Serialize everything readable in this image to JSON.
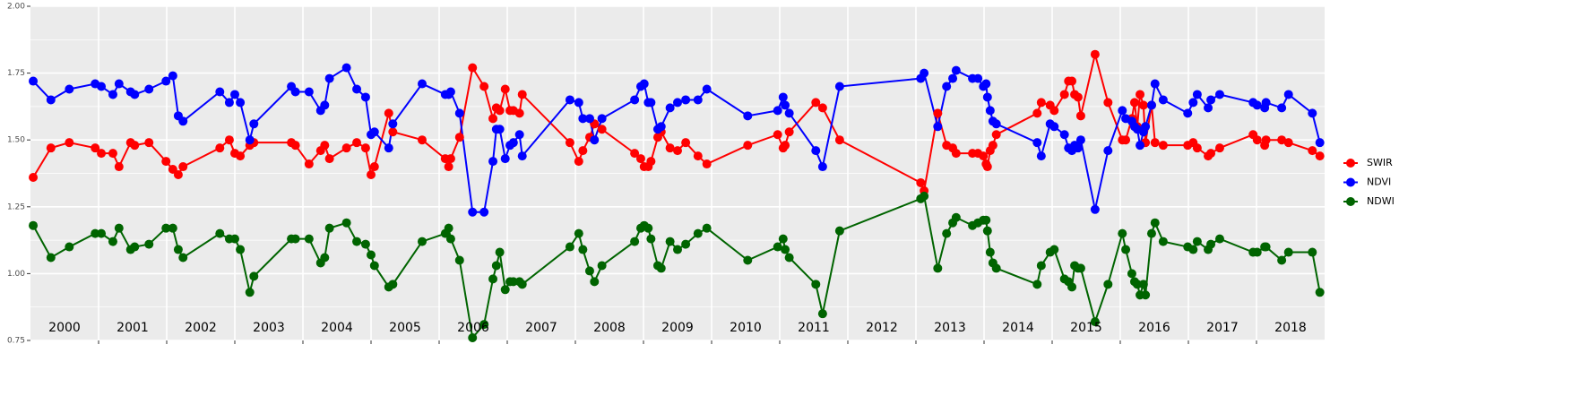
{
  "chart_data": {
    "type": "line",
    "x": [
      2000.04,
      2000.3,
      2000.57,
      2000.95,
      2001.04,
      2001.21,
      2001.3,
      2001.47,
      2001.53,
      2001.74,
      2001.99,
      2002.09,
      2002.17,
      2002.24,
      2002.78,
      2002.92,
      2003.0,
      2003.08,
      2003.22,
      2003.28,
      2003.83,
      2003.89,
      2004.09,
      2004.26,
      2004.32,
      2004.39,
      2004.64,
      2004.79,
      2004.92,
      2005.0,
      2005.05,
      2005.26,
      2005.32,
      2005.75,
      2006.09,
      2006.14,
      2006.17,
      2006.3,
      2006.49,
      2006.66,
      2006.79,
      2006.84,
      2006.89,
      2006.97,
      2007.04,
      2007.09,
      2007.18,
      2007.22,
      2007.92,
      2008.05,
      2008.11,
      2008.21,
      2008.28,
      2008.39,
      2008.87,
      2008.96,
      2009.01,
      2009.07,
      2009.11,
      2009.21,
      2009.26,
      2009.39,
      2009.5,
      2009.62,
      2009.8,
      2009.93,
      2010.53,
      2010.97,
      2011.05,
      2011.08,
      2011.14,
      2011.53,
      2011.63,
      2011.88,
      2013.07,
      2013.12,
      2013.32,
      2013.45,
      2013.54,
      2013.59,
      2013.83,
      2013.91,
      2013.99,
      2014.03,
      2014.05,
      2014.09,
      2014.13,
      2014.18,
      2014.78,
      2014.84,
      2014.97,
      2015.03,
      2015.18,
      2015.24,
      2015.29,
      2015.33,
      2015.38,
      2015.42,
      2015.63,
      2015.82,
      2016.03,
      2016.08,
      2016.17,
      2016.21,
      2016.25,
      2016.29,
      2016.34,
      2016.37,
      2016.46,
      2016.51,
      2016.63,
      2016.99,
      2017.07,
      2017.13,
      2017.29,
      2017.33,
      2017.46,
      2017.95,
      2018.01,
      2018.12,
      2018.14,
      2018.37,
      2018.47,
      2018.82,
      2018.93
    ],
    "series": [
      {
        "name": "SWIR",
        "color": "#ff0000",
        "values": [
          1.36,
          1.47,
          1.49,
          1.47,
          1.45,
          1.45,
          1.4,
          1.49,
          1.48,
          1.49,
          1.42,
          1.39,
          1.37,
          1.4,
          1.47,
          1.5,
          1.45,
          1.44,
          1.48,
          1.49,
          1.49,
          1.48,
          1.41,
          1.46,
          1.48,
          1.43,
          1.47,
          1.49,
          1.47,
          1.37,
          1.4,
          1.6,
          1.53,
          1.5,
          1.43,
          1.4,
          1.43,
          1.51,
          1.77,
          1.7,
          1.58,
          1.62,
          1.61,
          1.69,
          1.61,
          1.61,
          1.6,
          1.67,
          1.49,
          1.42,
          1.46,
          1.51,
          1.56,
          1.54,
          1.45,
          1.43,
          1.4,
          1.4,
          1.42,
          1.51,
          1.53,
          1.47,
          1.46,
          1.49,
          1.44,
          1.41,
          1.48,
          1.52,
          1.47,
          1.48,
          1.53,
          1.64,
          1.62,
          1.5,
          1.34,
          1.31,
          1.6,
          1.48,
          1.47,
          1.45,
          1.45,
          1.45,
          1.44,
          1.41,
          1.4,
          1.46,
          1.48,
          1.52,
          1.6,
          1.64,
          1.63,
          1.61,
          1.67,
          1.72,
          1.72,
          1.67,
          1.66,
          1.59,
          1.82,
          1.64,
          1.5,
          1.5,
          1.58,
          1.64,
          1.55,
          1.67,
          1.63,
          1.49,
          1.63,
          1.49,
          1.48,
          1.48,
          1.49,
          1.47,
          1.44,
          1.45,
          1.47,
          1.52,
          1.5,
          1.48,
          1.5,
          1.5,
          1.49,
          1.46,
          1.44
        ]
      },
      {
        "name": "NDVI",
        "color": "#0000ff",
        "values": [
          1.72,
          1.65,
          1.69,
          1.71,
          1.7,
          1.67,
          1.71,
          1.68,
          1.67,
          1.69,
          1.72,
          1.74,
          1.59,
          1.57,
          1.68,
          1.64,
          1.67,
          1.64,
          1.5,
          1.56,
          1.7,
          1.68,
          1.68,
          1.61,
          1.63,
          1.73,
          1.77,
          1.69,
          1.66,
          1.52,
          1.53,
          1.47,
          1.56,
          1.71,
          1.67,
          1.67,
          1.68,
          1.6,
          1.23,
          1.23,
          1.42,
          1.54,
          1.54,
          1.43,
          1.48,
          1.49,
          1.52,
          1.44,
          1.65,
          1.64,
          1.58,
          1.58,
          1.5,
          1.58,
          1.65,
          1.7,
          1.71,
          1.64,
          1.64,
          1.54,
          1.55,
          1.62,
          1.64,
          1.65,
          1.65,
          1.69,
          1.59,
          1.61,
          1.66,
          1.63,
          1.6,
          1.46,
          1.4,
          1.7,
          1.73,
          1.75,
          1.55,
          1.7,
          1.73,
          1.76,
          1.73,
          1.73,
          1.7,
          1.71,
          1.66,
          1.61,
          1.57,
          1.56,
          1.49,
          1.44,
          1.56,
          1.55,
          1.52,
          1.47,
          1.46,
          1.48,
          1.47,
          1.5,
          1.24,
          1.46,
          1.61,
          1.58,
          1.57,
          1.55,
          1.54,
          1.48,
          1.53,
          1.55,
          1.63,
          1.71,
          1.65,
          1.6,
          1.64,
          1.67,
          1.62,
          1.65,
          1.67,
          1.64,
          1.63,
          1.62,
          1.64,
          1.62,
          1.67,
          1.6,
          1.49
        ]
      },
      {
        "name": "NDWI",
        "color": "#006400",
        "values": [
          1.18,
          1.06,
          1.1,
          1.15,
          1.15,
          1.12,
          1.17,
          1.09,
          1.1,
          1.11,
          1.17,
          1.17,
          1.09,
          1.06,
          1.15,
          1.13,
          1.13,
          1.09,
          0.93,
          0.99,
          1.13,
          1.13,
          1.13,
          1.04,
          1.06,
          1.17,
          1.19,
          1.12,
          1.11,
          1.07,
          1.03,
          0.95,
          0.96,
          1.12,
          1.15,
          1.17,
          1.13,
          1.05,
          0.76,
          0.81,
          0.98,
          1.03,
          1.08,
          0.94,
          0.97,
          0.97,
          0.97,
          0.96,
          1.1,
          1.15,
          1.09,
          1.01,
          0.97,
          1.03,
          1.12,
          1.17,
          1.18,
          1.17,
          1.13,
          1.03,
          1.02,
          1.12,
          1.09,
          1.11,
          1.15,
          1.17,
          1.05,
          1.1,
          1.13,
          1.09,
          1.06,
          0.96,
          0.85,
          1.16,
          1.28,
          1.29,
          1.02,
          1.15,
          1.19,
          1.21,
          1.18,
          1.19,
          1.2,
          1.2,
          1.16,
          1.08,
          1.04,
          1.02,
          0.96,
          1.03,
          1.08,
          1.09,
          0.98,
          0.97,
          0.95,
          1.03,
          1.02,
          1.02,
          0.82,
          0.96,
          1.15,
          1.09,
          1.0,
          0.97,
          0.96,
          0.92,
          0.96,
          0.92,
          1.15,
          1.19,
          1.12,
          1.1,
          1.09,
          1.12,
          1.09,
          1.11,
          1.13,
          1.08,
          1.08,
          1.1,
          1.1,
          1.05,
          1.08,
          1.08,
          0.93
        ]
      }
    ],
    "xlim": [
      2000,
      2019
    ],
    "xticks": [
      2001,
      2002,
      2003,
      2004,
      2005,
      2006,
      2007,
      2008,
      2009,
      2010,
      2011,
      2012,
      2013,
      2014,
      2015,
      2016,
      2017,
      2018
    ],
    "year_labels": [
      {
        "value": 2000.5,
        "label": "2000"
      },
      {
        "value": 2001.5,
        "label": "2001"
      },
      {
        "value": 2002.5,
        "label": "2002"
      },
      {
        "value": 2003.5,
        "label": "2003"
      },
      {
        "value": 2004.5,
        "label": "2004"
      },
      {
        "value": 2005.5,
        "label": "2005"
      },
      {
        "value": 2006.5,
        "label": "2006"
      },
      {
        "value": 2007.5,
        "label": "2007"
      },
      {
        "value": 2008.5,
        "label": "2008"
      },
      {
        "value": 2009.5,
        "label": "2009"
      },
      {
        "value": 2010.5,
        "label": "2010"
      },
      {
        "value": 2011.5,
        "label": "2011"
      },
      {
        "value": 2012.5,
        "label": "2012"
      },
      {
        "value": 2013.5,
        "label": "2013"
      },
      {
        "value": 2014.5,
        "label": "2014"
      },
      {
        "value": 2015.5,
        "label": "2015"
      },
      {
        "value": 2016.5,
        "label": "2016"
      },
      {
        "value": 2017.5,
        "label": "2017"
      },
      {
        "value": 2018.5,
        "label": "2018"
      }
    ],
    "ylim": [
      0.75,
      2.0
    ],
    "yticks": [
      0.75,
      {
        "value": 1.0,
        "label": "1.00"
      },
      1.25,
      {
        "value": 1.5,
        "label": "1.50"
      },
      1.75,
      {
        "value": 2.0,
        "label": "2.00"
      }
    ],
    "grid": true
  }
}
